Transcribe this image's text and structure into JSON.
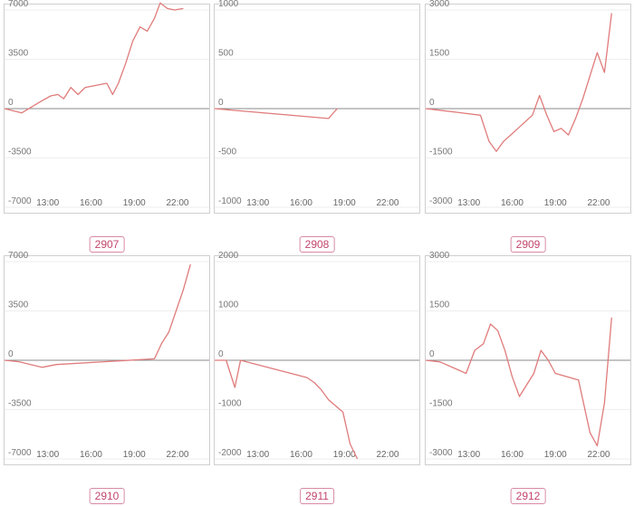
{
  "chart_data": [
    {
      "type": "line",
      "title": "2907",
      "yticks": [
        7000,
        3500,
        0,
        -3500,
        -7000
      ],
      "ytick_labels": [
        "7000",
        "3500",
        "0",
        "-3500",
        "-7000"
      ],
      "ylim": [
        -7000,
        7000
      ],
      "xticks": [
        13,
        16,
        19,
        22
      ],
      "xtick_labels": [
        "13:00",
        "16:00",
        "19:00",
        "22:00"
      ],
      "xlim": [
        10.0,
        24.2
      ],
      "color": "#e07b7b",
      "x": [
        10.0,
        11.2,
        12.5,
        13.2,
        13.7,
        14.1,
        14.6,
        15.1,
        15.6,
        17.1,
        17.5,
        17.9,
        18.4,
        18.9,
        19.4,
        19.9,
        20.4,
        20.8,
        21.3,
        21.8,
        22.4
      ],
      "y": [
        0,
        -300,
        500,
        900,
        1000,
        700,
        1500,
        1000,
        1500,
        1800,
        1000,
        1800,
        3200,
        4800,
        5800,
        5500,
        6400,
        7500,
        7100,
        7000,
        7100
      ]
    },
    {
      "type": "line",
      "title": "2908",
      "yticks": [
        1000,
        500,
        0,
        -500,
        -1000
      ],
      "ytick_labels": [
        "1000",
        "500",
        "0",
        "-500",
        "-1000"
      ],
      "ylim": [
        -1000,
        1000
      ],
      "xticks": [
        13,
        16,
        19,
        22
      ],
      "xtick_labels": [
        "13:00",
        "16:00",
        "19:00",
        "22:00"
      ],
      "xlim": [
        10.0,
        24.2
      ],
      "color": "#e07b7b",
      "x": [
        10.0,
        17.9,
        18.5
      ],
      "y": [
        0,
        -100,
        0
      ]
    },
    {
      "type": "line",
      "title": "2909",
      "yticks": [
        3000,
        1500,
        0,
        -1500,
        -3000
      ],
      "ytick_labels": [
        "3000",
        "1500",
        "0",
        "-1500",
        "-3000"
      ],
      "ylim": [
        -3000,
        3000
      ],
      "xticks": [
        13,
        16,
        19,
        22
      ],
      "xtick_labels": [
        "13:00",
        "16:00",
        "19:00",
        "22:00"
      ],
      "xlim": [
        10.0,
        24.2
      ],
      "color": "#e07b7b",
      "x": [
        10.0,
        11.0,
        13.8,
        14.4,
        14.9,
        15.4,
        15.9,
        16.4,
        17.4,
        17.9,
        18.4,
        18.9,
        19.4,
        19.9,
        20.4,
        20.9,
        21.9,
        22.4,
        22.9
      ],
      "y": [
        0,
        -50,
        -200,
        -1000,
        -1300,
        -1000,
        -800,
        -600,
        -200,
        400,
        -200,
        -700,
        -600,
        -800,
        -300,
        300,
        1700,
        1100,
        2900
      ]
    },
    {
      "type": "line",
      "title": "2910",
      "yticks": [
        7000,
        3500,
        0,
        -3500,
        -7000
      ],
      "ytick_labels": [
        "7000",
        "3500",
        "0",
        "-3500",
        "-7000"
      ],
      "ylim": [
        -7000,
        7000
      ],
      "xticks": [
        13,
        16,
        19,
        22
      ],
      "xtick_labels": [
        "13:00",
        "16:00",
        "19:00",
        "22:00"
      ],
      "xlim": [
        10.0,
        24.2
      ],
      "color": "#e07b7b",
      "x": [
        10.0,
        11.0,
        12.6,
        13.6,
        20.4,
        20.9,
        21.4,
        21.9,
        22.4,
        22.9
      ],
      "y": [
        0,
        -100,
        -500,
        -300,
        100,
        1200,
        2000,
        3500,
        5000,
        6800
      ]
    },
    {
      "type": "line",
      "title": "2911",
      "yticks": [
        2000,
        1000,
        0,
        -1000,
        -2000
      ],
      "ytick_labels": [
        "2000",
        "1000",
        "0",
        "-1000",
        "-2000"
      ],
      "ylim": [
        -2000,
        2000
      ],
      "xticks": [
        13,
        16,
        19,
        22
      ],
      "xtick_labels": [
        "13:00",
        "16:00",
        "19:00",
        "22:00"
      ],
      "xlim": [
        10.0,
        24.2
      ],
      "color": "#e07b7b",
      "x": [
        10.0,
        10.8,
        11.4,
        11.8,
        16.4,
        16.9,
        17.4,
        17.9,
        18.9,
        19.4,
        19.9
      ],
      "y": [
        0,
        0,
        -550,
        0,
        -350,
        -450,
        -600,
        -800,
        -1050,
        -1700,
        -2000
      ]
    },
    {
      "type": "line",
      "title": "2912",
      "yticks": [
        3000,
        1500,
        0,
        -1500,
        -3000
      ],
      "ytick_labels": [
        "3000",
        "1500",
        "0",
        "-1500",
        "-3000"
      ],
      "ylim": [
        -3000,
        3000
      ],
      "xticks": [
        13,
        16,
        19,
        22
      ],
      "xtick_labels": [
        "13:00",
        "16:00",
        "19:00",
        "22:00"
      ],
      "xlim": [
        10.0,
        24.2
      ],
      "color": "#e07b7b",
      "x": [
        10.0,
        11.0,
        12.8,
        13.4,
        14.0,
        14.5,
        15.0,
        15.5,
        16.0,
        16.5,
        17.5,
        18.0,
        18.5,
        19.0,
        20.6,
        21.4,
        21.9,
        22.4,
        22.9
      ],
      "y": [
        0,
        -50,
        -400,
        300,
        500,
        1100,
        900,
        300,
        -500,
        -1100,
        -400,
        300,
        0,
        -400,
        -600,
        -2200,
        -2600,
        -1300,
        1300
      ]
    }
  ]
}
